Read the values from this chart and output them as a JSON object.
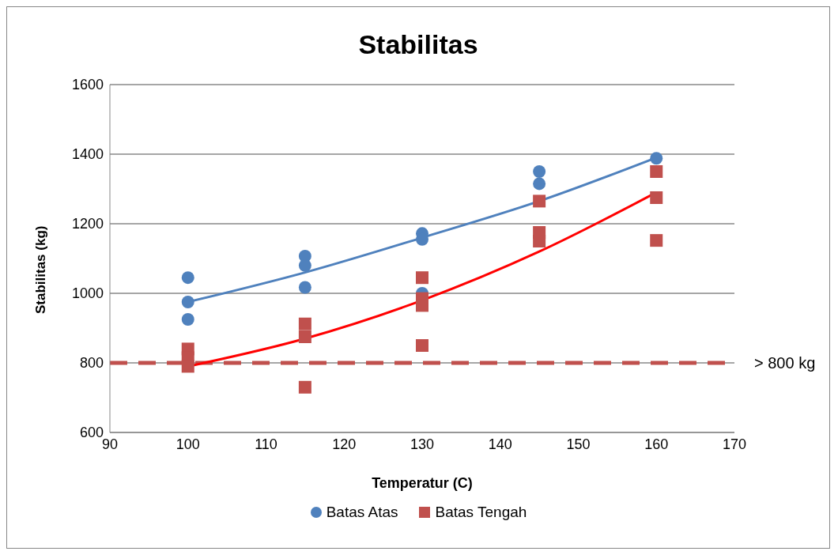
{
  "chart_data": {
    "type": "scatter",
    "title": "Stabilitas",
    "xlabel": "Temperatur (C)",
    "ylabel": "Stabilitas (kg)",
    "xlim": [
      90,
      170
    ],
    "xticks": [
      90,
      100,
      110,
      120,
      130,
      140,
      150,
      160,
      170
    ],
    "ylim": [
      600,
      1600
    ],
    "yticks": [
      600,
      800,
      1000,
      1200,
      1400,
      1600
    ],
    "grid": "y",
    "legend": "bottom",
    "series": [
      {
        "name": "Batas Atas",
        "marker": "circle",
        "color": "#4f81bd",
        "x": [
          100,
          100,
          100,
          115,
          115,
          115,
          130,
          130,
          130,
          145,
          145,
          160
        ],
        "values": [
          1045,
          975,
          925,
          1107,
          1080,
          1017,
          1172,
          1155,
          1000,
          1350,
          1315,
          1388
        ]
      },
      {
        "name": "Batas Tengah",
        "marker": "square",
        "color": "#c0504d",
        "x": [
          100,
          100,
          100,
          115,
          115,
          115,
          130,
          130,
          130,
          130,
          145,
          145,
          145,
          160,
          160,
          160
        ],
        "values": [
          840,
          815,
          790,
          912,
          875,
          730,
          1045,
          985,
          965,
          850,
          1265,
          1175,
          1150,
          1350,
          1275,
          1152
        ]
      },
      {
        "type": "line",
        "marker": "none",
        "line_style": "solid",
        "color": "#4f81bd",
        "x": [
          100,
          115,
          130,
          145,
          160
        ],
        "values": [
          975,
          1060,
          1160,
          1265,
          1390
        ]
      },
      {
        "type": "line",
        "marker": "none",
        "line_style": "solid",
        "color": "#ff0000",
        "x": [
          100,
          115,
          130,
          145,
          160
        ],
        "values": [
          790,
          870,
          980,
          1120,
          1290
        ]
      }
    ],
    "ref_lines": [
      {
        "axis": "y",
        "value": 800,
        "label": "> 800 kg",
        "color": "#c0504d",
        "line_style": "dashed"
      }
    ]
  }
}
